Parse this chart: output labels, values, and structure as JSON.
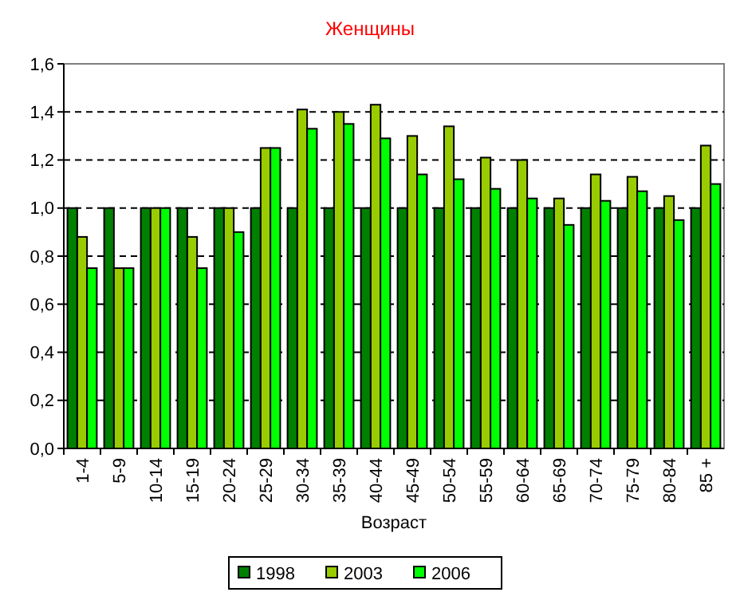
{
  "chart_data": {
    "type": "bar",
    "title": "Женщины",
    "xlabel": "Возраст",
    "categories": [
      "1-4",
      "5-9",
      "10-14",
      "15-19",
      "20-24",
      "25-29",
      "30-34",
      "35-39",
      "40-44",
      "45-49",
      "50-54",
      "55-59",
      "60-64",
      "65-69",
      "70-74",
      "75-79",
      "80-84",
      "85 +"
    ],
    "series": [
      {
        "name": "1998",
        "color": "#008000",
        "values": [
          1,
          1,
          1,
          1,
          1,
          1,
          1,
          1,
          1,
          1,
          1,
          1,
          1,
          1,
          1,
          1,
          1,
          1
        ]
      },
      {
        "name": "2003",
        "color": "#99cc00",
        "values": [
          0.88,
          0.75,
          1,
          0.88,
          1,
          1.25,
          1.41,
          1.4,
          1.43,
          1.3,
          1.34,
          1.21,
          1.2,
          1.04,
          1.14,
          1.13,
          1.05,
          1.26
        ]
      },
      {
        "name": "2006",
        "color": "#00ff00",
        "values": [
          0.75,
          0.75,
          1,
          0.75,
          0.9,
          1.25,
          1.33,
          1.35,
          1.29,
          1.14,
          1.12,
          1.08,
          1.04,
          0.93,
          1.03,
          1.07,
          0.95,
          1.1
        ]
      }
    ],
    "ylim": [
      0,
      1.6
    ],
    "yticks": [
      {
        "value": 0,
        "label": "0,0"
      },
      {
        "value": 0.2,
        "label": "0,2"
      },
      {
        "value": 0.4,
        "label": "0,4"
      },
      {
        "value": 0.6,
        "label": "0,6"
      },
      {
        "value": 0.8,
        "label": "0,8"
      },
      {
        "value": 1,
        "label": "1,0"
      },
      {
        "value": 1.2,
        "label": "1,2"
      },
      {
        "value": 1.4,
        "label": "1,4"
      },
      {
        "value": 1.6,
        "label": "1,6"
      }
    ],
    "grid": "y",
    "legend": "bottom"
  }
}
